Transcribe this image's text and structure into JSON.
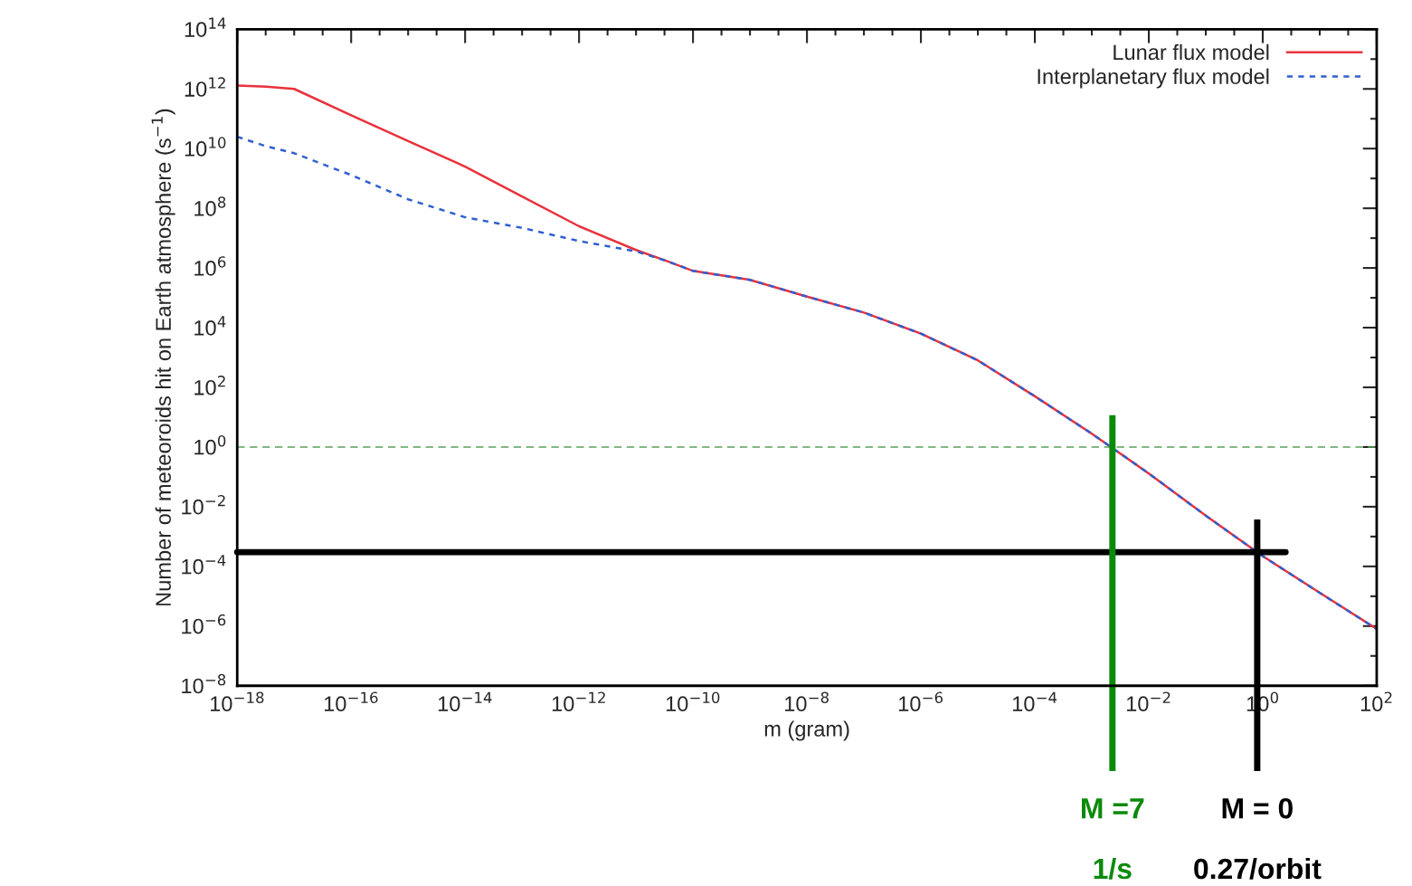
{
  "chart_data": {
    "type": "line",
    "xlabel": "m (gram)",
    "ylabel": "Number of meteoroids hit on Earth atmosphere (s$^{−1}$)",
    "log": "xy",
    "grid": false,
    "legend": "top right",
    "x": [
      1e-18,
      3.2e-18,
      1e-17,
      1e-16,
      1e-15,
      1e-14,
      1e-13,
      1e-12,
      1e-11,
      3.2e-11,
      1e-10,
      1e-09,
      1e-08,
      1e-07,
      1e-06,
      1e-05,
      0.0001,
      0.001,
      0.01,
      0.1,
      1,
      10,
      100
    ],
    "series": [
      {
        "name": "Lunar flux model",
        "color": "#e8323c",
        "line_style": "solid",
        "values": [
          1300000000000.0,
          1200000000000.0,
          1000000000000.0,
          130000000000.0,
          18000000000.0,
          2500000000.0,
          250000000.0,
          25000000.0,
          4000000.0,
          1800000.0,
          800000.0,
          400000.0,
          110000.0,
          32000.0,
          6300,
          800,
          50,
          2.8,
          0.13,
          0.005,
          0.00022,
          1.3e-05,
          8e-07
        ]
      },
      {
        "name": "Interplanetary flux model",
        "color": "#2f5fd0",
        "line_style": "dotted",
        "values": [
          25000000000.0,
          12000000000.0,
          7000000000.0,
          1300000000.0,
          200000000.0,
          50000000.0,
          22000000.0,
          8000000.0,
          3600000.0,
          1800000.0,
          800000.0,
          400000.0,
          110000.0,
          32000.0,
          6300,
          800,
          50,
          2.8,
          0.13,
          0.005,
          0.00022,
          1.3e-05,
          8e-07
        ]
      }
    ],
    "xlim": [
      1e-18,
      100
    ],
    "ylim": [
      1e-08,
      100000000000000.0
    ],
    "xticks": [
      {
        "value": 1e-18,
        "label": "10$^{−18}$"
      },
      {
        "value": 1e-16,
        "label": "10$^{−16}$"
      },
      {
        "value": 1e-14,
        "label": "10$^{−14}$"
      },
      {
        "value": 1e-12,
        "label": "10$^{−12}$"
      },
      {
        "value": 1e-10,
        "label": "10$^{−10}$"
      },
      {
        "value": 1e-08,
        "label": "10$^{−8}$"
      },
      {
        "value": 1e-06,
        "label": "10$^{−6}$"
      },
      {
        "value": 0.0001,
        "label": "10$^{−4}$"
      },
      {
        "value": 0.01,
        "label": "10$^{−2}$"
      },
      {
        "value": 1,
        "label": "10$^{0}$"
      },
      {
        "value": 100,
        "label": "10$^{2}$"
      }
    ],
    "yticks": [
      {
        "value": 1e-08,
        "label": "10$^{−8}$"
      },
      {
        "value": 1e-06,
        "label": "10$^{−6}$"
      },
      {
        "value": 0.0001,
        "label": "10$^{−4}$"
      },
      {
        "value": 0.01,
        "label": "10$^{−2}$"
      },
      {
        "value": 1,
        "label": "10$^{0}$"
      },
      {
        "value": 100,
        "label": "10$^{2}$"
      },
      {
        "value": 10000,
        "label": "10$^{4}$"
      },
      {
        "value": 1000000.0,
        "label": "10$^{6}$"
      },
      {
        "value": 100000000.0,
        "label": "10$^{8}$"
      },
      {
        "value": 10000000000.0,
        "label": "10$^{10}$"
      },
      {
        "value": 1000000000000.0,
        "label": "10$^{12}$"
      },
      {
        "value": 100000000000000.0,
        "label": "10$^{14}$"
      }
    ],
    "ref_lines": [
      {
        "axis": "y",
        "value": 1,
        "color": "#5aa05a",
        "line_style": "dashed"
      },
      {
        "axis": "y",
        "value": 0.0003,
        "color": "#000000",
        "line_style": "solid"
      },
      {
        "axis": "x",
        "value": 0.0023,
        "color": "#0a8a0a",
        "line_style": "solid"
      },
      {
        "axis": "x",
        "value": 0.8,
        "color": "#000000",
        "line_style": "solid"
      }
    ],
    "annotations": [
      "M =7\n1/s",
      "M = 0\n0.27/orbit"
    ]
  }
}
